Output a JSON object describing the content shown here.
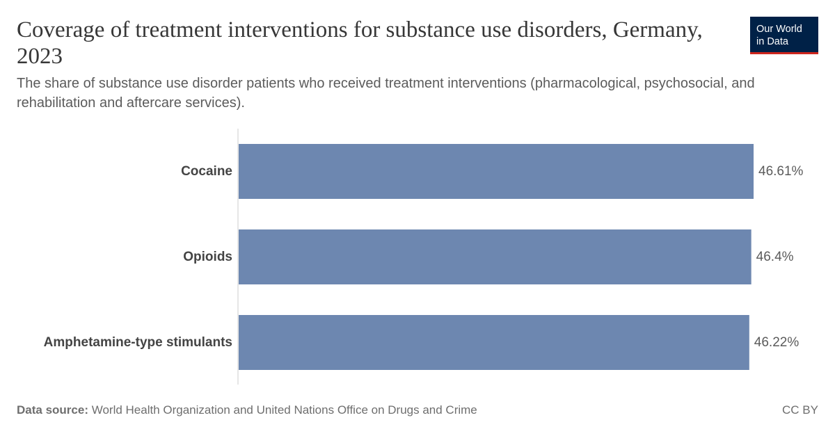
{
  "header": {
    "title": "Coverage of treatment interventions for substance use disorders, Germany, 2023",
    "subtitle": "The share of substance use disorder patients who received treatment interventions (pharmacological, psychosocial, and rehabilitation and aftercare services)."
  },
  "logo": {
    "line1": "Our World",
    "line2": "in Data",
    "bg_color": "#002147",
    "accent_color": "#ce261e"
  },
  "footer": {
    "source_label": "Data source:",
    "source_text": "World Health Organization and United Nations Office on Drugs and Crime",
    "license": "CC BY"
  },
  "chart_data": {
    "type": "bar",
    "orientation": "horizontal",
    "categories": [
      "Cocaine",
      "Opioids",
      "Amphetamine-type stimulants"
    ],
    "values": [
      46.61,
      46.4,
      46.22
    ],
    "value_labels": [
      "46.61%",
      "46.4%",
      "46.22%"
    ],
    "unit": "%",
    "xlim": [
      0,
      46.61
    ],
    "grid": false,
    "bar_color": "#6d87b0"
  }
}
